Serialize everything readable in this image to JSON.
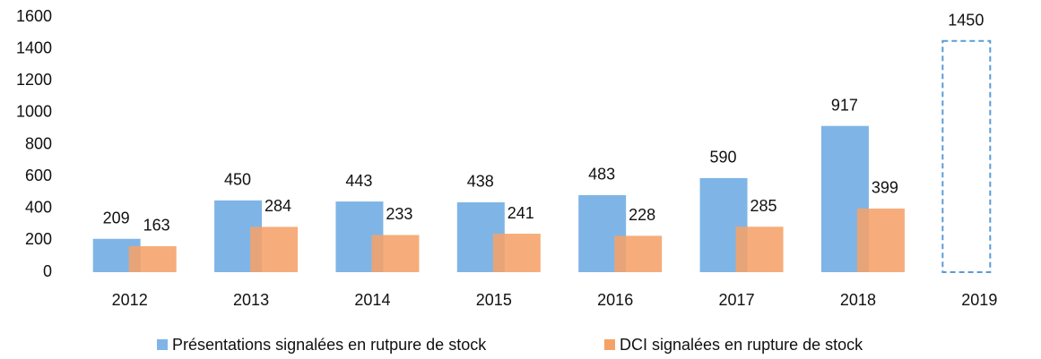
{
  "chart_data": {
    "type": "bar",
    "categories": [
      "2012",
      "2013",
      "2014",
      "2015",
      "2016",
      "2017",
      "2018",
      "2019"
    ],
    "series": [
      {
        "name": "Présentations signalées en rutpure de stock",
        "color": "#7fb5e6",
        "values": [
          209,
          450,
          443,
          438,
          483,
          590,
          917,
          1450
        ],
        "dashed": [
          false,
          false,
          false,
          false,
          false,
          false,
          false,
          true
        ]
      },
      {
        "name": "DCI signalées en rupture de stock",
        "color": "#f5a269",
        "values": [
          163,
          284,
          233,
          241,
          228,
          285,
          399,
          null
        ]
      }
    ],
    "ylim": [
      0,
      1600
    ],
    "yticks": [
      0,
      200,
      400,
      600,
      800,
      1000,
      1200,
      1400,
      1600
    ],
    "grid": false,
    "legend": "bottom"
  }
}
